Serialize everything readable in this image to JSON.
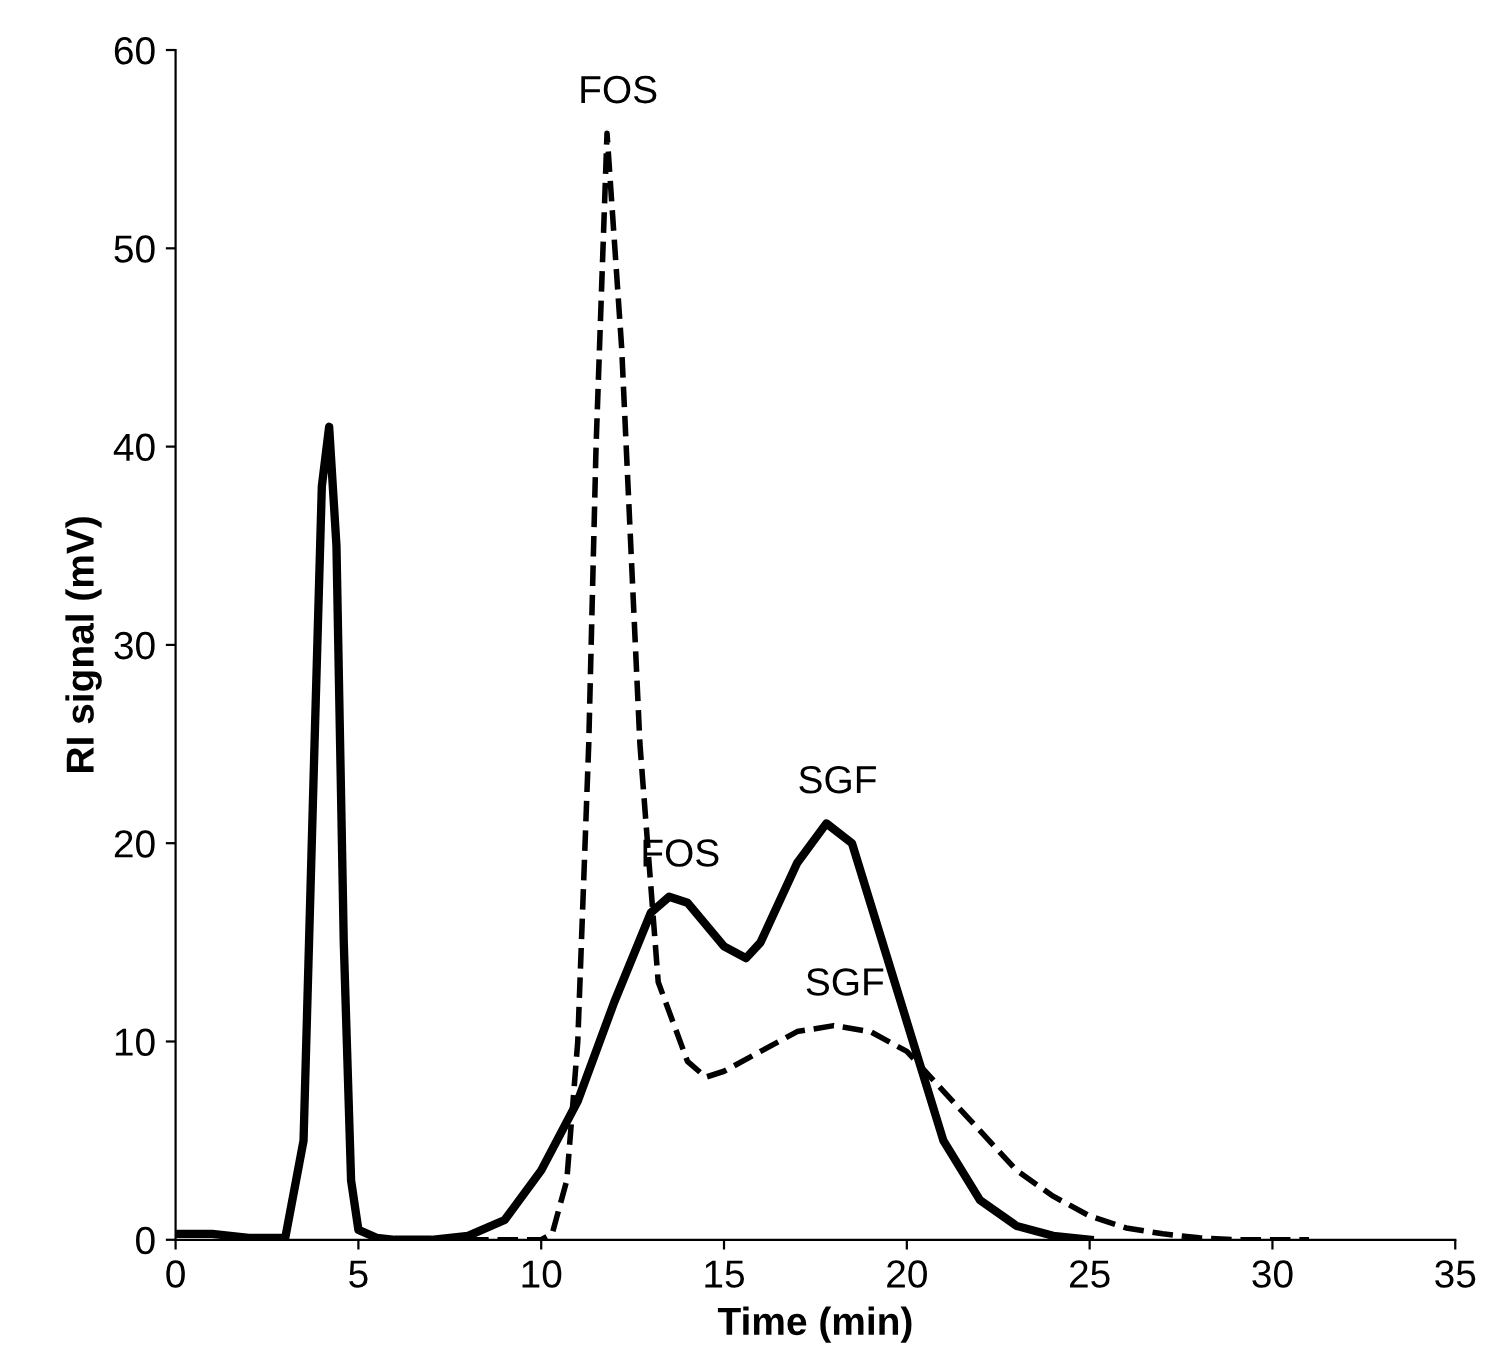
{
  "chart_data": {
    "type": "line",
    "xlabel": "Time (min)",
    "ylabel": "RI signal (mV)",
    "xlim": [
      0,
      35
    ],
    "xticks": [
      0,
      5,
      10,
      15,
      20,
      25,
      30,
      35
    ],
    "ylim": [
      0,
      60
    ],
    "yticks": [
      0,
      10,
      20,
      30,
      40,
      50,
      60
    ],
    "grid": false,
    "legend": false,
    "marker": "none",
    "series": [
      {
        "color": "#000000",
        "line_style": "solid",
        "x": [
          0,
          1,
          2,
          3,
          3.5,
          3.8,
          4.0,
          4.2,
          4.4,
          4.6,
          4.8,
          5.0,
          5.5,
          6,
          7,
          8,
          9,
          10,
          11,
          12,
          13,
          13.5,
          14,
          15,
          15.6,
          16,
          17,
          17.8,
          18.5,
          19,
          20,
          21,
          22,
          23,
          24,
          25
        ],
        "values": [
          0.3,
          0.3,
          0.1,
          0.1,
          5,
          25,
          38,
          41,
          35,
          15,
          3,
          0.5,
          0.1,
          0,
          0,
          0.2,
          1,
          3.5,
          7,
          12,
          16.5,
          17.3,
          17,
          14.8,
          14.2,
          15,
          19,
          21,
          20,
          17,
          11,
          5,
          2,
          0.7,
          0.2,
          0
        ]
      },
      {
        "color": "#000000",
        "line_style": "dashed",
        "x": [
          8,
          10,
          10.3,
          10.7,
          11,
          11.3,
          11.5,
          11.8,
          12.2,
          12.7,
          13.2,
          14,
          14.5,
          15,
          16,
          17,
          18,
          19,
          20,
          21,
          22,
          23,
          24,
          25,
          26,
          27,
          28,
          29,
          31
        ],
        "values": [
          0,
          0,
          0.3,
          3,
          10,
          25,
          40,
          55.8,
          45,
          25,
          13,
          9,
          8.2,
          8.5,
          9.5,
          10.5,
          10.8,
          10.5,
          9.5,
          7.5,
          5.5,
          3.5,
          2.2,
          1.2,
          0.6,
          0.3,
          0.1,
          0,
          0
        ]
      }
    ],
    "annotations": [
      {
        "text": "FOS",
        "x": 11.8,
        "y": 55.8
      },
      {
        "text": "FOS",
        "x": 13.5,
        "y": 17.3
      },
      {
        "text": "SGF",
        "x": 17.8,
        "y": 21
      },
      {
        "text": "SGF",
        "x": 18,
        "y": 10.8
      }
    ]
  }
}
